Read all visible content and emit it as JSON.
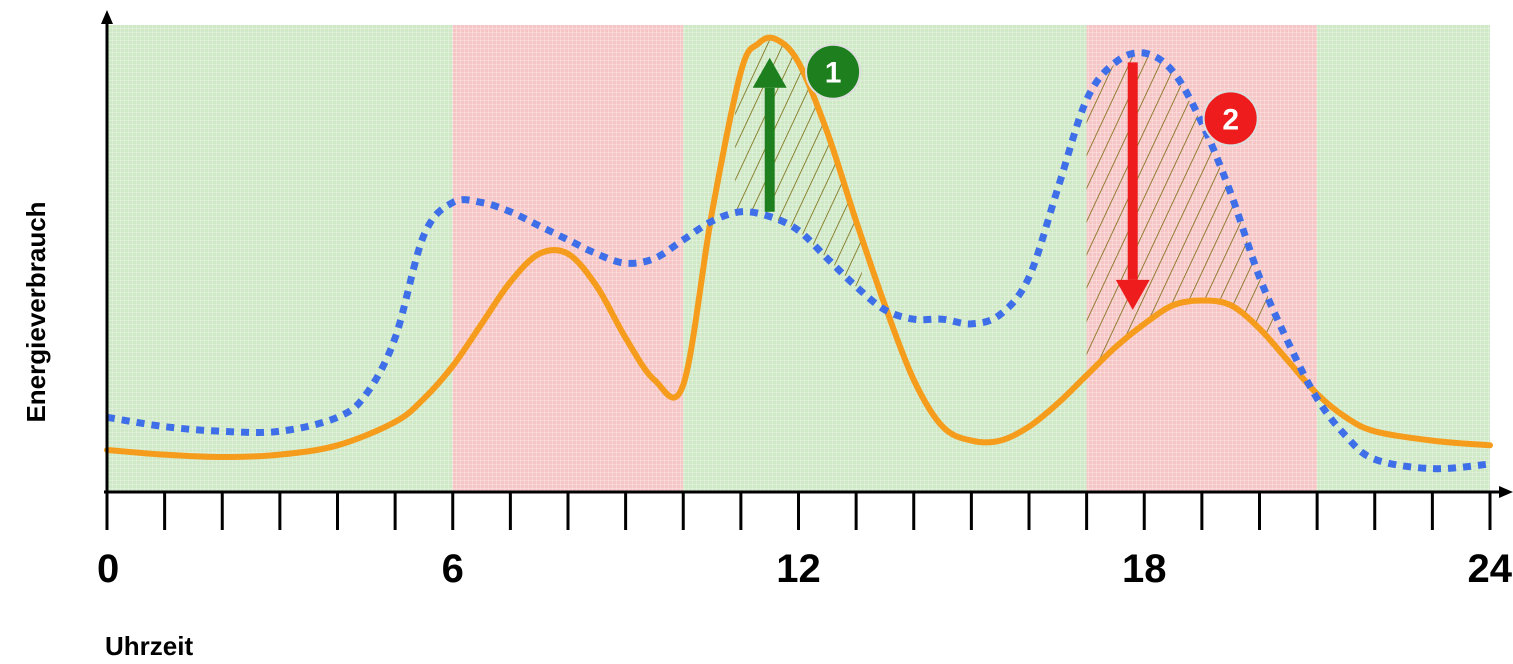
{
  "chart_data": {
    "type": "line",
    "xlabel": "Uhrzeit",
    "ylabel": "Energieverbrauch",
    "xlim": [
      0,
      24
    ],
    "ylim": [
      0,
      100
    ],
    "x_tick_labels": [
      "0",
      "6",
      "12",
      "18",
      "24"
    ],
    "x_tick_label_values": [
      0,
      6,
      12,
      18,
      24
    ],
    "minor_ticks": [
      0,
      1,
      2,
      3,
      4,
      5,
      6,
      7,
      8,
      9,
      10,
      11,
      12,
      13,
      14,
      15,
      16,
      17,
      18,
      19,
      20,
      21,
      22,
      23,
      24
    ],
    "background_bands": [
      {
        "from": 0,
        "to": 6,
        "color": "#cfe9c6"
      },
      {
        "from": 6,
        "to": 10,
        "color": "#f6c6c6"
      },
      {
        "from": 10,
        "to": 17,
        "color": "#cfe9c6"
      },
      {
        "from": 17,
        "to": 21,
        "color": "#f6c6c6"
      },
      {
        "from": 21,
        "to": 24,
        "color": "#cfe9c6"
      }
    ],
    "series": [
      {
        "style": "solid",
        "color": "#f59c1c",
        "x": [
          0,
          1,
          2,
          3,
          4,
          5,
          5.5,
          6,
          6.5,
          7,
          7.5,
          8,
          8.5,
          9,
          9.5,
          10,
          10.5,
          11,
          11.3,
          11.6,
          12,
          12.5,
          13,
          13.5,
          14,
          14.5,
          15,
          15.5,
          16,
          16.5,
          17,
          17.5,
          18,
          18.5,
          19,
          19.5,
          20,
          20.5,
          21,
          21.5,
          22,
          23,
          24
        ],
        "y": [
          9,
          8,
          7.5,
          8,
          10,
          15,
          20,
          27,
          36,
          45,
          51,
          51,
          44,
          33,
          24,
          23,
          60,
          90,
          96,
          97,
          92,
          77,
          58,
          40,
          24,
          14,
          11,
          11,
          14,
          19,
          25,
          31,
          36,
          40,
          41,
          40,
          35,
          28,
          21,
          16,
          13,
          11,
          10
        ]
      },
      {
        "style": "dotted",
        "color": "#3f6fe8",
        "x": [
          0,
          1,
          2,
          3,
          4,
          4.5,
          5,
          5.5,
          6,
          6.5,
          7,
          7.5,
          8,
          8.5,
          9,
          9.5,
          10,
          10.5,
          11,
          11.5,
          12,
          12.5,
          13,
          13.5,
          14,
          14.5,
          15,
          15.5,
          16,
          16.5,
          17,
          17.5,
          18,
          18.5,
          19,
          19.5,
          20,
          20.5,
          21,
          21.5,
          22,
          23,
          24
        ],
        "y": [
          16,
          14,
          13,
          13,
          16,
          21,
          33,
          55,
          62,
          62,
          60,
          57,
          54,
          51,
          49,
          50,
          54,
          58,
          60,
          59,
          56,
          50,
          44,
          39,
          37,
          37,
          36,
          38,
          46,
          65,
          84,
          92,
          94,
          90,
          79,
          64,
          46,
          32,
          20,
          12,
          7,
          5,
          6
        ]
      }
    ],
    "arrows": [
      {
        "id": "1",
        "x": 11.5,
        "from_y": 60,
        "to_y": 93,
        "color": "#1d7f1d"
      },
      {
        "id": "2",
        "x": 17.8,
        "from_y": 92,
        "to_y": 39,
        "color": "#ee1c1c"
      }
    ],
    "hatched_regions": [
      {
        "from": 10.9,
        "to": 13.1,
        "upper": "solid",
        "lower": "dotted"
      },
      {
        "from": 17,
        "to": 20.3,
        "upper": "dotted",
        "lower": "solid"
      }
    ],
    "badges": [
      {
        "label": "1",
        "x": 12.6,
        "y": 90,
        "color": "#1d7f1d"
      },
      {
        "label": "2",
        "x": 19.5,
        "y": 80,
        "color": "#ee1c1c"
      }
    ]
  }
}
